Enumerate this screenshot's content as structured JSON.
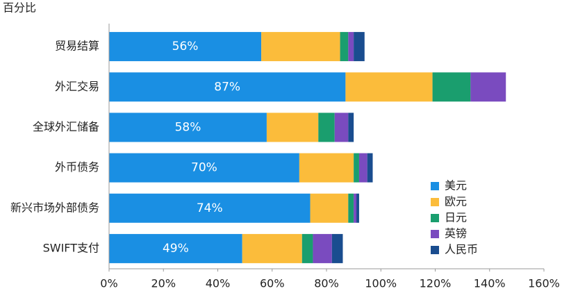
{
  "chart_data": {
    "type": "bar",
    "orientation": "horizontal",
    "stacked": true,
    "y_label": "百分比",
    "categories": [
      "贸易结算",
      "外汇交易",
      "全球外汇储备",
      "外币债务",
      "新兴市场外部债务",
      "SWIFT支付"
    ],
    "series": [
      {
        "name": "美元",
        "color": "#1a8fe3",
        "values": [
          56,
          87,
          58,
          70,
          74,
          49
        ],
        "value_labels": [
          "56%",
          "87%",
          "58%",
          "70%",
          "74%",
          "49%"
        ]
      },
      {
        "name": "欧元",
        "color": "#fbbc3b",
        "values": [
          29,
          32,
          19,
          20,
          14,
          22
        ]
      },
      {
        "name": "日元",
        "color": "#1a9e6e",
        "values": [
          3,
          14,
          6,
          2,
          2,
          4
        ]
      },
      {
        "name": "英镑",
        "color": "#7a4bbf",
        "values": [
          2,
          13,
          5,
          3,
          1,
          7
        ]
      },
      {
        "name": "人民币",
        "color": "#1a4d8f",
        "values": [
          4,
          0,
          2,
          2,
          1,
          4
        ]
      }
    ],
    "xlim": [
      0,
      160
    ],
    "xticks": [
      {
        "value": 0,
        "label": "0%"
      },
      {
        "value": 20,
        "label": "20%"
      },
      {
        "value": 40,
        "label": "40%"
      },
      {
        "value": 60,
        "label": "60%"
      },
      {
        "value": 80,
        "label": "80%"
      },
      {
        "value": 100,
        "label": "100%"
      },
      {
        "value": 120,
        "label": "120%"
      },
      {
        "value": 140,
        "label": "140%"
      },
      {
        "value": 160,
        "label": "160%"
      }
    ]
  }
}
